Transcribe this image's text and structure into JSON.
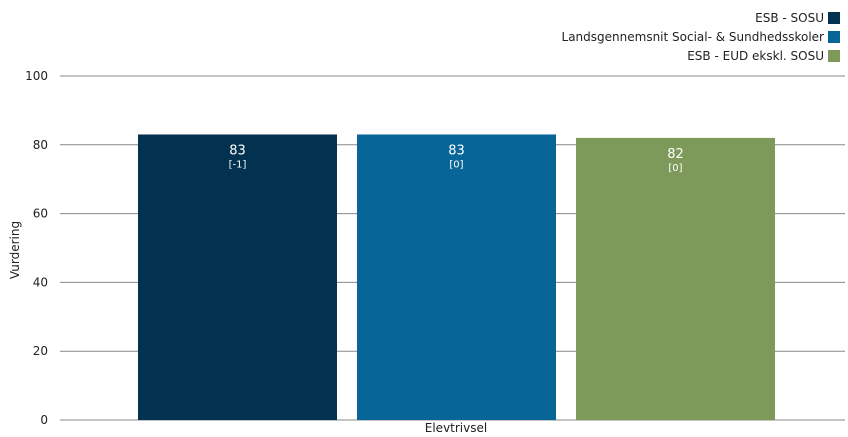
{
  "chart_data": {
    "type": "bar",
    "categories": [
      "Elevtrivsel"
    ],
    "series": [
      {
        "name": "ESB - SOSU",
        "values": [
          83
        ],
        "sublabel": "[-1]",
        "color": "#02324f"
      },
      {
        "name": "Landsgennemsnit Social- & Sundhedsskoler",
        "values": [
          83
        ],
        "sublabel": "[0]",
        "color": "#076598"
      },
      {
        "name": "ESB - EUD ekskl. SOSU",
        "values": [
          82
        ],
        "sublabel": "[0]",
        "color": "#7e9a5b"
      }
    ],
    "ylabel": "Vurdering",
    "xlabel": "",
    "ylim": [
      0,
      100
    ],
    "yticks": [
      0,
      20,
      40,
      60,
      80,
      100
    ],
    "grid": true,
    "legend_position": "top-right"
  }
}
